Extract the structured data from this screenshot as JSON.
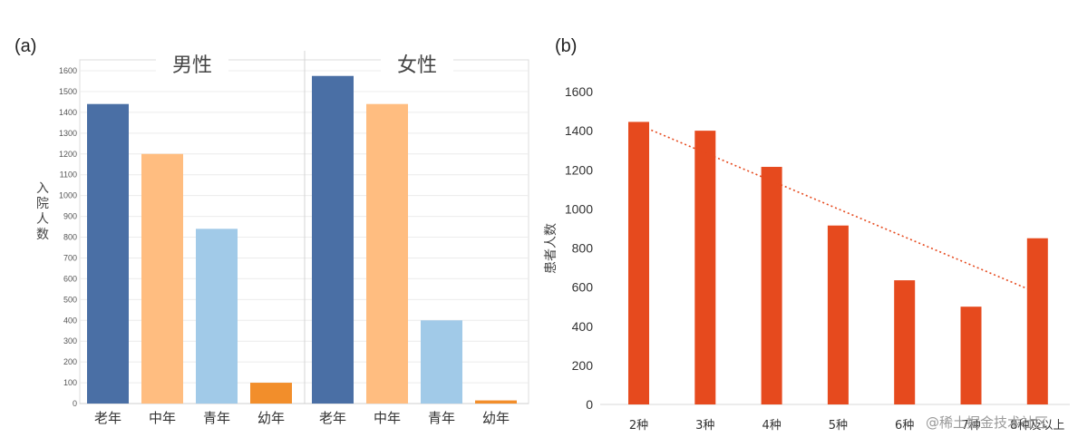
{
  "panel_a_label": "(a)",
  "panel_b_label": "(b)",
  "watermark": "@稀土掘金技术社区",
  "chart_data": [
    {
      "type": "bar",
      "panel": "(a)",
      "ylabel": "入院人数",
      "ylim": [
        0,
        1600
      ],
      "yticks": [
        0,
        100,
        200,
        300,
        400,
        500,
        600,
        700,
        800,
        900,
        1000,
        1100,
        1200,
        1300,
        1400,
        1500,
        1600
      ],
      "grid": true,
      "categories": [
        "老年",
        "中年",
        "青年",
        "幼年"
      ],
      "colors": [
        "#4a6fa5",
        "#ffbd80",
        "#a1cae8",
        "#f28e2b"
      ],
      "facets": [
        {
          "name": "男性",
          "values": [
            1440,
            1200,
            840,
            100
          ]
        },
        {
          "name": "女性",
          "values": [
            1575,
            1440,
            400,
            15
          ]
        }
      ]
    },
    {
      "type": "bar",
      "panel": "(b)",
      "ylabel": "患者人数",
      "ylim": [
        0,
        1600
      ],
      "yticks": [
        0,
        200,
        400,
        600,
        800,
        1000,
        1200,
        1400,
        1600
      ],
      "grid": false,
      "categories": [
        "2种",
        "3种",
        "4种",
        "5种",
        "6种",
        "7种",
        "8种及以上"
      ],
      "values": [
        1445,
        1400,
        1215,
        915,
        635,
        500,
        850
      ],
      "color": "#e64a1e",
      "trendline": {
        "style": "dotted",
        "color": "#e64a1e",
        "from": [
          1,
          1430
        ],
        "to": [
          7,
          570
        ]
      }
    }
  ]
}
